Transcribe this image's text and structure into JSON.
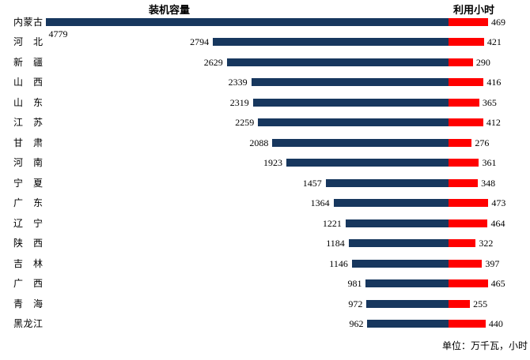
{
  "chart_data": {
    "type": "bar",
    "subtype": "diverging-horizontal-tornado",
    "grid": false,
    "legend_position": "none",
    "header_left": "装机容量",
    "header_right": "利用小时",
    "unit_note": "单位：万千瓦，小时",
    "categories": [
      "内蒙古",
      "河北",
      "新疆",
      "山西",
      "山东",
      "江苏",
      "甘肃",
      "河南",
      "宁夏",
      "广东",
      "辽宁",
      "陕西",
      "吉林",
      "广西",
      "青海",
      "黑龙江"
    ],
    "series": [
      {
        "name": "装机容量",
        "side": "left",
        "color": "#17375E",
        "values": [
          4779,
          2794,
          2629,
          2339,
          2319,
          2259,
          2088,
          1923,
          1457,
          1364,
          1221,
          1184,
          1146,
          981,
          972,
          962
        ]
      },
      {
        "name": "利用小时",
        "side": "right",
        "color": "#FF0000",
        "values": [
          469,
          421,
          290,
          416,
          365,
          412,
          276,
          361,
          348,
          473,
          464,
          322,
          397,
          465,
          255,
          440
        ]
      }
    ],
    "value_labels_shown": true
  },
  "colors": {
    "background": "#FFFFFF",
    "text": "#000000",
    "capacity_bar": "#17375E",
    "hours_bar": "#FF0000"
  }
}
